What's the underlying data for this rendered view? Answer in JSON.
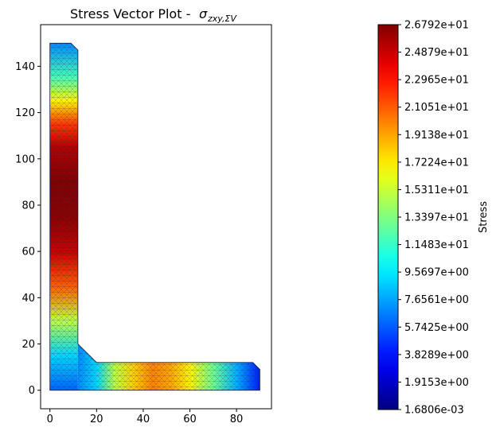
{
  "chart_data": {
    "type": "heatmap",
    "title_prefix": "Stress Vector Plot - ",
    "title_sigma": "σ",
    "title_subscript": "zxy,ΣV",
    "xlabel": "",
    "ylabel": "",
    "xlim": [
      -4,
      95
    ],
    "ylim": [
      -8,
      158
    ],
    "xticks": [
      0,
      20,
      40,
      60,
      80
    ],
    "yticks": [
      0,
      20,
      40,
      60,
      80,
      100,
      120,
      140
    ],
    "colorbar": {
      "label": "Stress",
      "colormap": "jet",
      "min": 0.0016806,
      "max": 26.792,
      "tick_labels": [
        "2.6792e+01",
        "2.4879e+01",
        "2.2965e+01",
        "2.1051e+01",
        "1.9138e+01",
        "1.7224e+01",
        "1.5311e+01",
        "1.3397e+01",
        "1.1483e+01",
        "9.5697e+00",
        "7.6561e+00",
        "5.7425e+00",
        "3.8289e+00",
        "1.9153e+00",
        "1.6806e-03"
      ],
      "tick_values": [
        26.792,
        24.879,
        22.965,
        21.051,
        19.138,
        17.224,
        15.311,
        13.397,
        11.483,
        9.5697,
        7.6561,
        5.7425,
        3.8289,
        1.9153,
        0.0016806
      ]
    },
    "section": {
      "shape": "L-angle",
      "outline": [
        [
          0,
          0
        ],
        [
          90,
          0
        ],
        [
          90,
          9
        ],
        [
          87,
          12
        ],
        [
          20,
          12
        ],
        [
          12,
          20
        ],
        [
          12,
          147
        ],
        [
          9,
          150
        ],
        [
          0,
          150
        ]
      ],
      "vertical_leg_stress": [
        {
          "y": 0,
          "value": 6
        },
        {
          "y": 15,
          "value": 9
        },
        {
          "y": 30,
          "value": 15
        },
        {
          "y": 45,
          "value": 21
        },
        {
          "y": 60,
          "value": 25
        },
        {
          "y": 75,
          "value": 26.5
        },
        {
          "y": 90,
          "value": 26.8
        },
        {
          "y": 105,
          "value": 25.5
        },
        {
          "y": 115,
          "value": 22
        },
        {
          "y": 125,
          "value": 17
        },
        {
          "y": 135,
          "value": 12
        },
        {
          "y": 150,
          "value": 7
        }
      ],
      "horizontal_leg_stress": [
        {
          "x": 12,
          "value": 7
        },
        {
          "x": 20,
          "value": 9
        },
        {
          "x": 28,
          "value": 15
        },
        {
          "x": 36,
          "value": 18
        },
        {
          "x": 44,
          "value": 20
        },
        {
          "x": 52,
          "value": 19
        },
        {
          "x": 60,
          "value": 17
        },
        {
          "x": 70,
          "value": 13
        },
        {
          "x": 80,
          "value": 8
        },
        {
          "x": 90,
          "value": 4
        }
      ]
    }
  }
}
